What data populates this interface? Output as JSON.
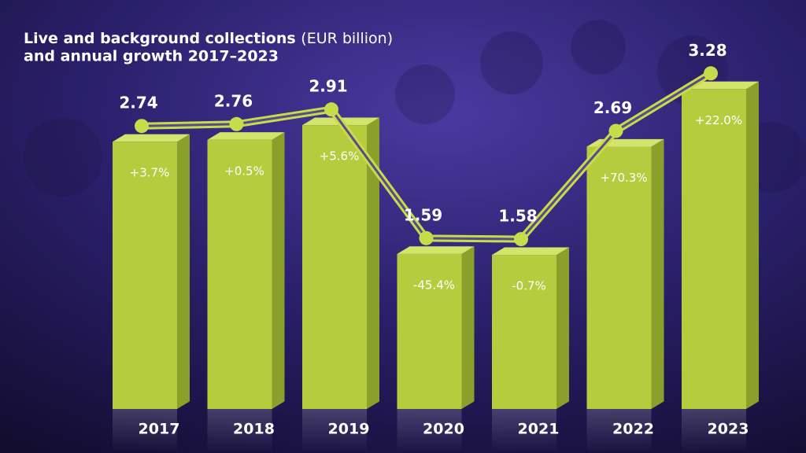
{
  "chart_data": {
    "type": "bar3d",
    "title": "Live and background collections",
    "unit": "(EUR billion)",
    "subtitle": "and annual growth 2017–2023",
    "categories": [
      "2017",
      "2018",
      "2019",
      "2020",
      "2021",
      "2022",
      "2023"
    ],
    "values": [
      2.74,
      2.76,
      2.91,
      1.59,
      1.58,
      2.69,
      3.28
    ],
    "color": "#b5cc3f",
    "growth": {
      "values": [
        3.7,
        0.5,
        5.6,
        -45.4,
        -0.7,
        70.3,
        22.0
      ],
      "value_labels": [
        "+3.7%",
        "+0.5%",
        "+5.6%",
        "-45.4%",
        "-0.7%",
        "+70.3%",
        "+22.0%"
      ]
    }
  }
}
